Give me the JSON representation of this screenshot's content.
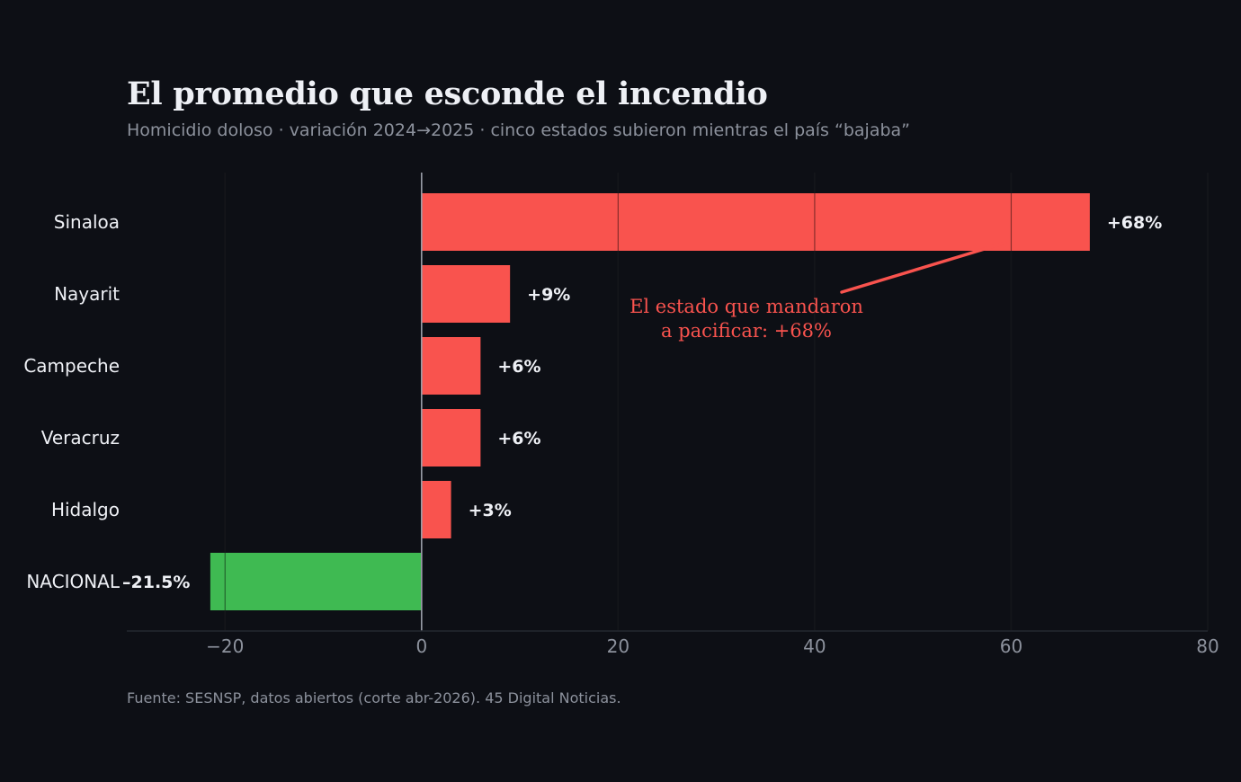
{
  "title": "El promedio que esconde el incendio",
  "subtitle": "Homicidio doloso · variación 2024→2025 · cinco estados subieron mientras el país “bajaba”",
  "source": "Fuente: SESNSP, datos abiertos (corte abr-2026). 45 Digital Noticias.",
  "colors": {
    "background": "#0d0f15",
    "increase": "#f9534e",
    "decrease": "#3fba52",
    "annotation": "#f9534e",
    "text": "#eef0f5",
    "muted": "#8c919c",
    "grid": "#252830"
  },
  "chart_data": {
    "type": "bar",
    "orientation": "horizontal",
    "categories": [
      "Sinaloa",
      "Nayarit",
      "Campeche",
      "Veracruz",
      "Hidalgo",
      "NACIONAL"
    ],
    "values": [
      68,
      9,
      6,
      6,
      3,
      -21.5
    ],
    "value_labels": [
      "+68%",
      "+9%",
      "+6%",
      "+6%",
      "+3%",
      "–21.5%"
    ],
    "xlim": [
      -30,
      80
    ],
    "xticks": [
      -20,
      0,
      20,
      40,
      60,
      80
    ],
    "xtick_labels": [
      "−20",
      "0",
      "20",
      "40",
      "60",
      "80"
    ],
    "grid": true,
    "annotation": {
      "lines": [
        "El estado que mandaron",
        "a pacificar: +68%"
      ],
      "target_category": "Sinaloa"
    }
  }
}
